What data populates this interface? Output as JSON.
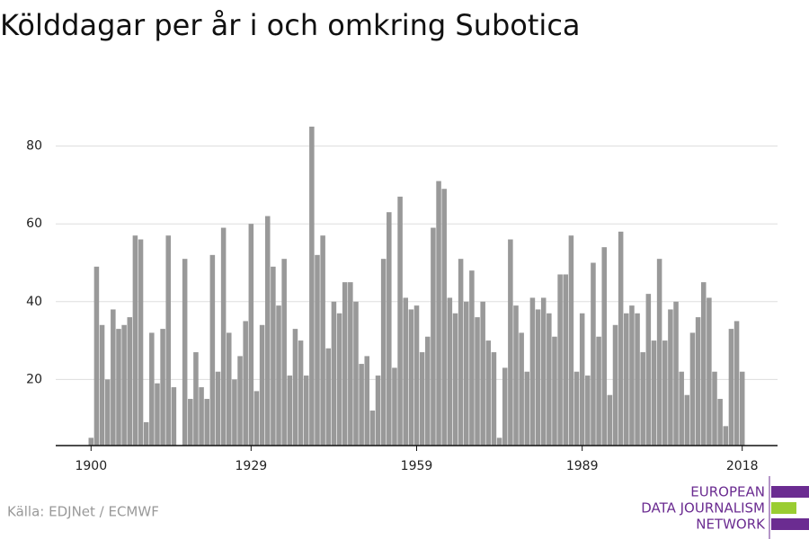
{
  "chart_data": {
    "type": "bar",
    "title": "Kölddagar per år i och omkring Subotica",
    "source": "Källa: EDJNet / ECMWF",
    "logo": [
      "EUROPEAN",
      "DATA JOURNALISM",
      "NETWORK"
    ],
    "color": "#999999",
    "x": [
      1900,
      1901,
      1902,
      1903,
      1904,
      1905,
      1906,
      1907,
      1908,
      1909,
      1910,
      1911,
      1912,
      1913,
      1914,
      1915,
      1916,
      1917,
      1918,
      1919,
      1920,
      1921,
      1922,
      1923,
      1924,
      1925,
      1926,
      1927,
      1928,
      1929,
      1930,
      1931,
      1932,
      1933,
      1934,
      1935,
      1936,
      1937,
      1938,
      1939,
      1940,
      1941,
      1942,
      1943,
      1944,
      1945,
      1946,
      1947,
      1948,
      1949,
      1950,
      1951,
      1952,
      1953,
      1954,
      1955,
      1956,
      1957,
      1958,
      1959,
      1960,
      1961,
      1962,
      1963,
      1964,
      1965,
      1966,
      1967,
      1968,
      1969,
      1970,
      1971,
      1972,
      1973,
      1974,
      1975,
      1976,
      1977,
      1978,
      1979,
      1980,
      1981,
      1982,
      1983,
      1984,
      1985,
      1986,
      1987,
      1988,
      1989,
      1990,
      1991,
      1992,
      1993,
      1994,
      1995,
      1996,
      1997,
      1998,
      1999,
      2000,
      2001,
      2002,
      2003,
      2004,
      2005,
      2006,
      2007,
      2008,
      2009,
      2010,
      2011,
      2012,
      2013,
      2014,
      2015,
      2016,
      2017,
      2018
    ],
    "values": [
      5,
      49,
      34,
      20,
      38,
      33,
      34,
      36,
      57,
      56,
      9,
      32,
      19,
      33,
      57,
      18,
      3,
      51,
      15,
      27,
      18,
      15,
      52,
      22,
      59,
      32,
      20,
      26,
      35,
      60,
      17,
      34,
      62,
      49,
      39,
      51,
      21,
      33,
      30,
      21,
      85,
      52,
      57,
      28,
      40,
      37,
      45,
      45,
      40,
      24,
      26,
      12,
      21,
      51,
      63,
      23,
      67,
      41,
      38,
      39,
      27,
      31,
      59,
      71,
      69,
      41,
      37,
      51,
      40,
      48,
      36,
      40,
      30,
      27,
      5,
      23,
      56,
      39,
      32,
      22,
      41,
      38,
      41,
      37,
      31,
      47,
      47,
      57,
      22,
      37,
      21,
      50,
      31,
      54,
      16,
      34,
      58,
      37,
      39,
      37,
      27,
      42,
      30,
      51,
      30,
      38,
      40,
      22,
      16,
      32,
      36,
      45,
      41,
      22,
      15,
      8,
      33,
      35,
      22
    ],
    "xlim": [
      1893.6,
      2024.4
    ],
    "xticks": [
      1900,
      1929,
      1959,
      1989,
      2018
    ],
    "ylim": [
      3,
      90
    ],
    "yticks": [
      20,
      40,
      60,
      80
    ],
    "grid": true
  }
}
